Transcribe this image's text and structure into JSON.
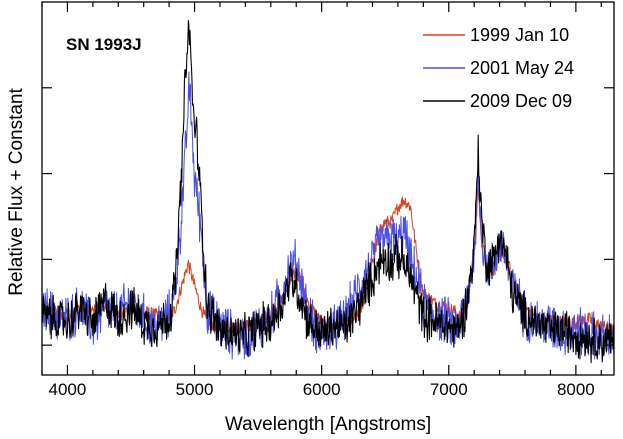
{
  "chart_data": {
    "type": "line",
    "title": "SN 1993J",
    "xlabel": "Wavelength [Angstroms]",
    "ylabel": "Relative Flux + Constant",
    "xlim": [
      3800,
      8300
    ],
    "ylim": [
      0,
      10
    ],
    "xticks": [
      4000,
      5000,
      6000,
      7000,
      8000
    ],
    "xtick_labels": [
      "4000",
      "5000",
      "6000",
      "7000",
      "8000"
    ],
    "yticks": [
      0.8,
      3.1,
      5.4,
      7.7
    ],
    "y_tick_labels_shown": false,
    "grid": false,
    "legend_position": "top-right",
    "series": [
      {
        "name": "1999 Jan 10",
        "color": "#d8431c",
        "points": [
          [
            3800,
            1.9
          ],
          [
            3900,
            1.7
          ],
          [
            4000,
            1.5
          ],
          [
            4100,
            1.8
          ],
          [
            4200,
            1.7
          ],
          [
            4300,
            1.9
          ],
          [
            4400,
            1.6
          ],
          [
            4500,
            1.8
          ],
          [
            4600,
            1.7
          ],
          [
            4700,
            1.6
          ],
          [
            4800,
            1.5
          ],
          [
            4850,
            1.8
          ],
          [
            4900,
            2.4
          ],
          [
            4950,
            3.0
          ],
          [
            5000,
            2.4
          ],
          [
            5050,
            1.8
          ],
          [
            5100,
            1.4
          ],
          [
            5200,
            1.3
          ],
          [
            5300,
            1.3
          ],
          [
            5400,
            1.3
          ],
          [
            5500,
            1.4
          ],
          [
            5600,
            1.6
          ],
          [
            5700,
            2.1
          ],
          [
            5750,
            2.6
          ],
          [
            5800,
            2.8
          ],
          [
            5850,
            2.4
          ],
          [
            5900,
            1.9
          ],
          [
            6000,
            1.4
          ],
          [
            6100,
            1.3
          ],
          [
            6200,
            1.4
          ],
          [
            6300,
            1.6
          ],
          [
            6400,
            3.0
          ],
          [
            6450,
            3.8
          ],
          [
            6500,
            4.1
          ],
          [
            6550,
            4.1
          ],
          [
            6600,
            4.5
          ],
          [
            6650,
            4.7
          ],
          [
            6700,
            4.5
          ],
          [
            6750,
            3.2
          ],
          [
            6800,
            2.2
          ],
          [
            6900,
            1.9
          ],
          [
            7000,
            1.8
          ],
          [
            7050,
            1.7
          ],
          [
            7100,
            1.5
          ],
          [
            7150,
            2.0
          ],
          [
            7200,
            3.3
          ],
          [
            7230,
            5.0
          ],
          [
            7260,
            3.6
          ],
          [
            7300,
            2.9
          ],
          [
            7350,
            2.8
          ],
          [
            7400,
            3.4
          ],
          [
            7450,
            3.2
          ],
          [
            7500,
            2.6
          ],
          [
            7600,
            1.8
          ],
          [
            7700,
            1.5
          ],
          [
            7800,
            1.5
          ],
          [
            7900,
            1.4
          ],
          [
            8000,
            1.4
          ],
          [
            8100,
            1.5
          ],
          [
            8200,
            1.3
          ],
          [
            8300,
            1.2
          ]
        ]
      },
      {
        "name": "2001 May 24",
        "color": "#4a4ee8",
        "points": [
          [
            3800,
            1.8
          ],
          [
            3900,
            1.6
          ],
          [
            4000,
            1.5
          ],
          [
            4100,
            1.8
          ],
          [
            4200,
            1.3
          ],
          [
            4300,
            1.8
          ],
          [
            4400,
            1.6
          ],
          [
            4500,
            2.0
          ],
          [
            4600,
            1.5
          ],
          [
            4700,
            1.3
          ],
          [
            4800,
            1.6
          ],
          [
            4850,
            2.3
          ],
          [
            4900,
            4.4
          ],
          [
            4930,
            6.0
          ],
          [
            4960,
            7.8
          ],
          [
            5000,
            5.3
          ],
          [
            5050,
            4.0
          ],
          [
            5080,
            2.4
          ],
          [
            5100,
            1.7
          ],
          [
            5200,
            1.3
          ],
          [
            5300,
            1.1
          ],
          [
            5400,
            1.0
          ],
          [
            5500,
            1.3
          ],
          [
            5600,
            1.5
          ],
          [
            5700,
            2.4
          ],
          [
            5750,
            2.9
          ],
          [
            5800,
            3.0
          ],
          [
            5850,
            2.4
          ],
          [
            5900,
            1.5
          ],
          [
            6000,
            1.1
          ],
          [
            6100,
            1.2
          ],
          [
            6200,
            1.6
          ],
          [
            6300,
            2.4
          ],
          [
            6400,
            3.1
          ],
          [
            6450,
            3.5
          ],
          [
            6500,
            3.6
          ],
          [
            6550,
            3.7
          ],
          [
            6600,
            3.5
          ],
          [
            6650,
            3.9
          ],
          [
            6700,
            3.0
          ],
          [
            6750,
            2.6
          ],
          [
            6800,
            1.9
          ],
          [
            6900,
            1.6
          ],
          [
            7000,
            1.4
          ],
          [
            7050,
            1.3
          ],
          [
            7100,
            1.5
          ],
          [
            7150,
            2.2
          ],
          [
            7200,
            3.2
          ],
          [
            7230,
            5.2
          ],
          [
            7260,
            3.8
          ],
          [
            7300,
            2.8
          ],
          [
            7350,
            3.0
          ],
          [
            7400,
            3.6
          ],
          [
            7450,
            3.1
          ],
          [
            7500,
            2.4
          ],
          [
            7600,
            1.6
          ],
          [
            7700,
            1.4
          ],
          [
            7800,
            1.3
          ],
          [
            7900,
            1.2
          ],
          [
            8000,
            1.2
          ],
          [
            8100,
            1.1
          ],
          [
            8200,
            1.0
          ],
          [
            8300,
            1.0
          ]
        ]
      },
      {
        "name": "2009 Dec 09",
        "color": "#000000",
        "points": [
          [
            3800,
            1.6
          ],
          [
            3900,
            1.5
          ],
          [
            4000,
            1.4
          ],
          [
            4100,
            1.8
          ],
          [
            4200,
            1.4
          ],
          [
            4300,
            2.0
          ],
          [
            4400,
            1.5
          ],
          [
            4500,
            1.8
          ],
          [
            4600,
            1.4
          ],
          [
            4700,
            1.3
          ],
          [
            4800,
            1.5
          ],
          [
            4850,
            2.5
          ],
          [
            4900,
            5.5
          ],
          [
            4930,
            8.2
          ],
          [
            4960,
            9.3
          ],
          [
            4990,
            7.0
          ],
          [
            5020,
            6.3
          ],
          [
            5050,
            4.6
          ],
          [
            5080,
            3.0
          ],
          [
            5100,
            1.9
          ],
          [
            5200,
            1.2
          ],
          [
            5300,
            1.1
          ],
          [
            5400,
            1.0
          ],
          [
            5500,
            1.3
          ],
          [
            5600,
            1.4
          ],
          [
            5700,
            2.0
          ],
          [
            5750,
            2.6
          ],
          [
            5800,
            2.4
          ],
          [
            5850,
            1.9
          ],
          [
            5900,
            1.4
          ],
          [
            6000,
            1.1
          ],
          [
            6100,
            1.3
          ],
          [
            6200,
            1.3
          ],
          [
            6300,
            1.9
          ],
          [
            6400,
            2.6
          ],
          [
            6450,
            3.0
          ],
          [
            6500,
            3.2
          ],
          [
            6550,
            3.0
          ],
          [
            6600,
            3.2
          ],
          [
            6650,
            3.0
          ],
          [
            6700,
            2.6
          ],
          [
            6750,
            2.1
          ],
          [
            6800,
            1.6
          ],
          [
            6900,
            1.4
          ],
          [
            7000,
            1.3
          ],
          [
            7050,
            1.2
          ],
          [
            7100,
            1.4
          ],
          [
            7150,
            2.1
          ],
          [
            7200,
            3.4
          ],
          [
            7230,
            6.0
          ],
          [
            7260,
            4.1
          ],
          [
            7300,
            3.0
          ],
          [
            7350,
            3.0
          ],
          [
            7400,
            3.8
          ],
          [
            7450,
            3.2
          ],
          [
            7500,
            2.2
          ],
          [
            7600,
            1.6
          ],
          [
            7700,
            1.4
          ],
          [
            7800,
            1.2
          ],
          [
            7900,
            1.2
          ],
          [
            8000,
            1.1
          ],
          [
            8100,
            1.0
          ],
          [
            8200,
            0.9
          ],
          [
            8300,
            0.9
          ]
        ]
      }
    ]
  }
}
